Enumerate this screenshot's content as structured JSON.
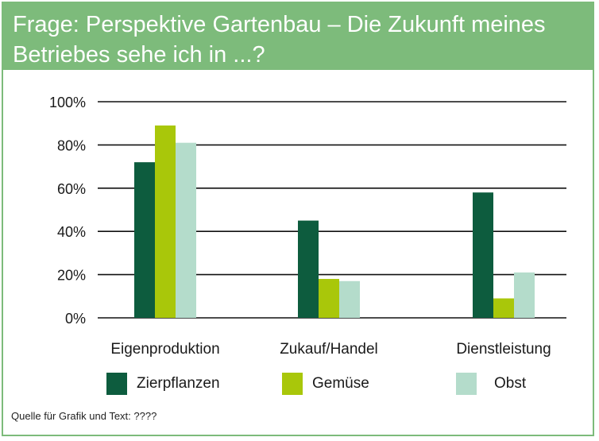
{
  "header": {
    "title_line1": "Frage: Perspektive Gartenbau – Die Zukunft meines",
    "title_line2": "Betriebes sehe ich in ...?"
  },
  "colors": {
    "accent": "#7dbb7b",
    "zierpflanzen": "#0d5c3e",
    "gemuese": "#a9c70a",
    "obst": "#b4dccb"
  },
  "chart_data": {
    "type": "bar",
    "categories": [
      "Eigenproduktion",
      "Zukauf/Handel",
      "Dienstleistung"
    ],
    "series": [
      {
        "name": "Zierpflanzen",
        "values": [
          72,
          45,
          58
        ]
      },
      {
        "name": "Gemüse",
        "values": [
          89,
          18,
          9
        ]
      },
      {
        "name": "Obst",
        "values": [
          81,
          17,
          21
        ]
      }
    ],
    "yticks": [
      "0%",
      "20%",
      "40%",
      "60%",
      "80%",
      "100%"
    ],
    "ylim": [
      0,
      100
    ],
    "grid": true,
    "legend_position": "bottom"
  },
  "source": "Quelle für Grafik und Text: ????"
}
